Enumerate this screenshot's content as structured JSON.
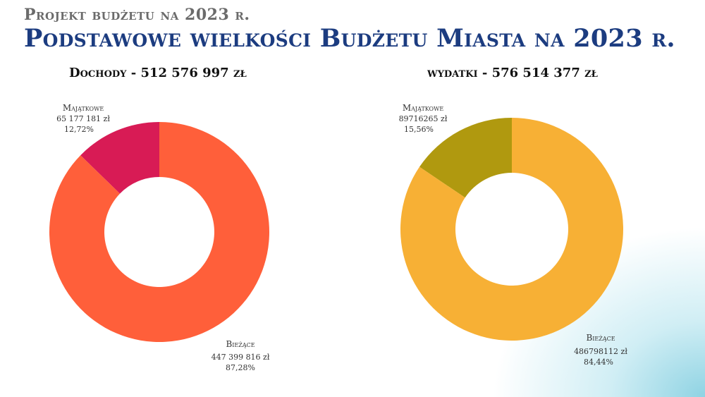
{
  "header": {
    "subtitle": "Projekt budżetu na 2023 r.",
    "title": "Podstawowe wielkości Budżetu Miasta na 2023 r."
  },
  "chart_data": [
    {
      "type": "pie",
      "title": "Dochody - 512 576 997 zł",
      "slices": [
        {
          "label": "Majątkowe",
          "amount_text": "65 177 181 zł",
          "percent_text": "12,72%",
          "value": 12.72,
          "color": "#d81b55"
        },
        {
          "label": "Bieżące",
          "amount_text": "447 399 816 zł",
          "percent_text": "87,28%",
          "value": 87.28,
          "color": "#ff5f3a"
        }
      ]
    },
    {
      "type": "pie",
      "title": "wydatki - 576 514 377 zł",
      "slices": [
        {
          "label": "Majątkowe",
          "amount_text": "89716265 zł",
          "percent_text": "15,56%",
          "value": 15.56,
          "color": "#b0990f"
        },
        {
          "label": "Bieżące",
          "amount_text": "486798112 zł",
          "percent_text": "84,44%",
          "value": 84.44,
          "color": "#f7b035"
        }
      ]
    }
  ]
}
